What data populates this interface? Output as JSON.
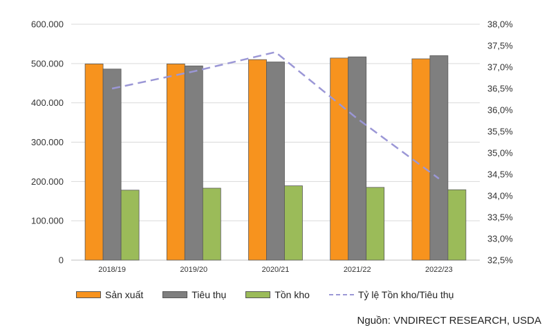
{
  "chart_data": {
    "type": "bar",
    "categories": [
      "2018/19",
      "2019/20",
      "2020/21",
      "2021/22",
      "2022/23"
    ],
    "series": [
      {
        "name": "Sản xuất",
        "kind": "bar",
        "axis": "left",
        "color": "#f7931e",
        "values": [
          499000,
          499000,
          510000,
          514000,
          512000
        ]
      },
      {
        "name": "Tiêu thụ",
        "kind": "bar",
        "axis": "left",
        "color": "#7f7f7f",
        "values": [
          486000,
          494000,
          504000,
          517000,
          520000
        ]
      },
      {
        "name": "Tồn kho",
        "kind": "bar",
        "axis": "left",
        "color": "#9bbb59",
        "values": [
          178000,
          183000,
          189000,
          185000,
          179000
        ]
      },
      {
        "name": "Tỷ lệ Tồn kho/Tiêu thụ",
        "kind": "line",
        "axis": "right",
        "color": "#9b97d6",
        "values": [
          36.5,
          36.9,
          37.35,
          35.8,
          34.4
        ]
      }
    ],
    "y_left": {
      "min": 0,
      "max": 600000,
      "ticks": [
        "0",
        "100.000",
        "200.000",
        "300.000",
        "400.000",
        "500.000",
        "600.000"
      ]
    },
    "y_right": {
      "min": 32.5,
      "max": 38.0,
      "ticks": [
        "32,5%",
        "33,0%",
        "33,5%",
        "34,0%",
        "34,5%",
        "35,0%",
        "35,5%",
        "36,0%",
        "36,5%",
        "37,0%",
        "37,5%",
        "38,0%"
      ]
    },
    "grid": true,
    "legend_position": "bottom",
    "title": "",
    "xlabel": "",
    "ylabel": ""
  },
  "legend": {
    "production": "Sản xuất",
    "consumption": "Tiêu thụ",
    "inventory": "Tồn kho",
    "ratio": "Tỷ lệ Tồn kho/Tiêu thụ"
  },
  "source": "Nguồn: VNDIRECT RESEARCH, USDA"
}
